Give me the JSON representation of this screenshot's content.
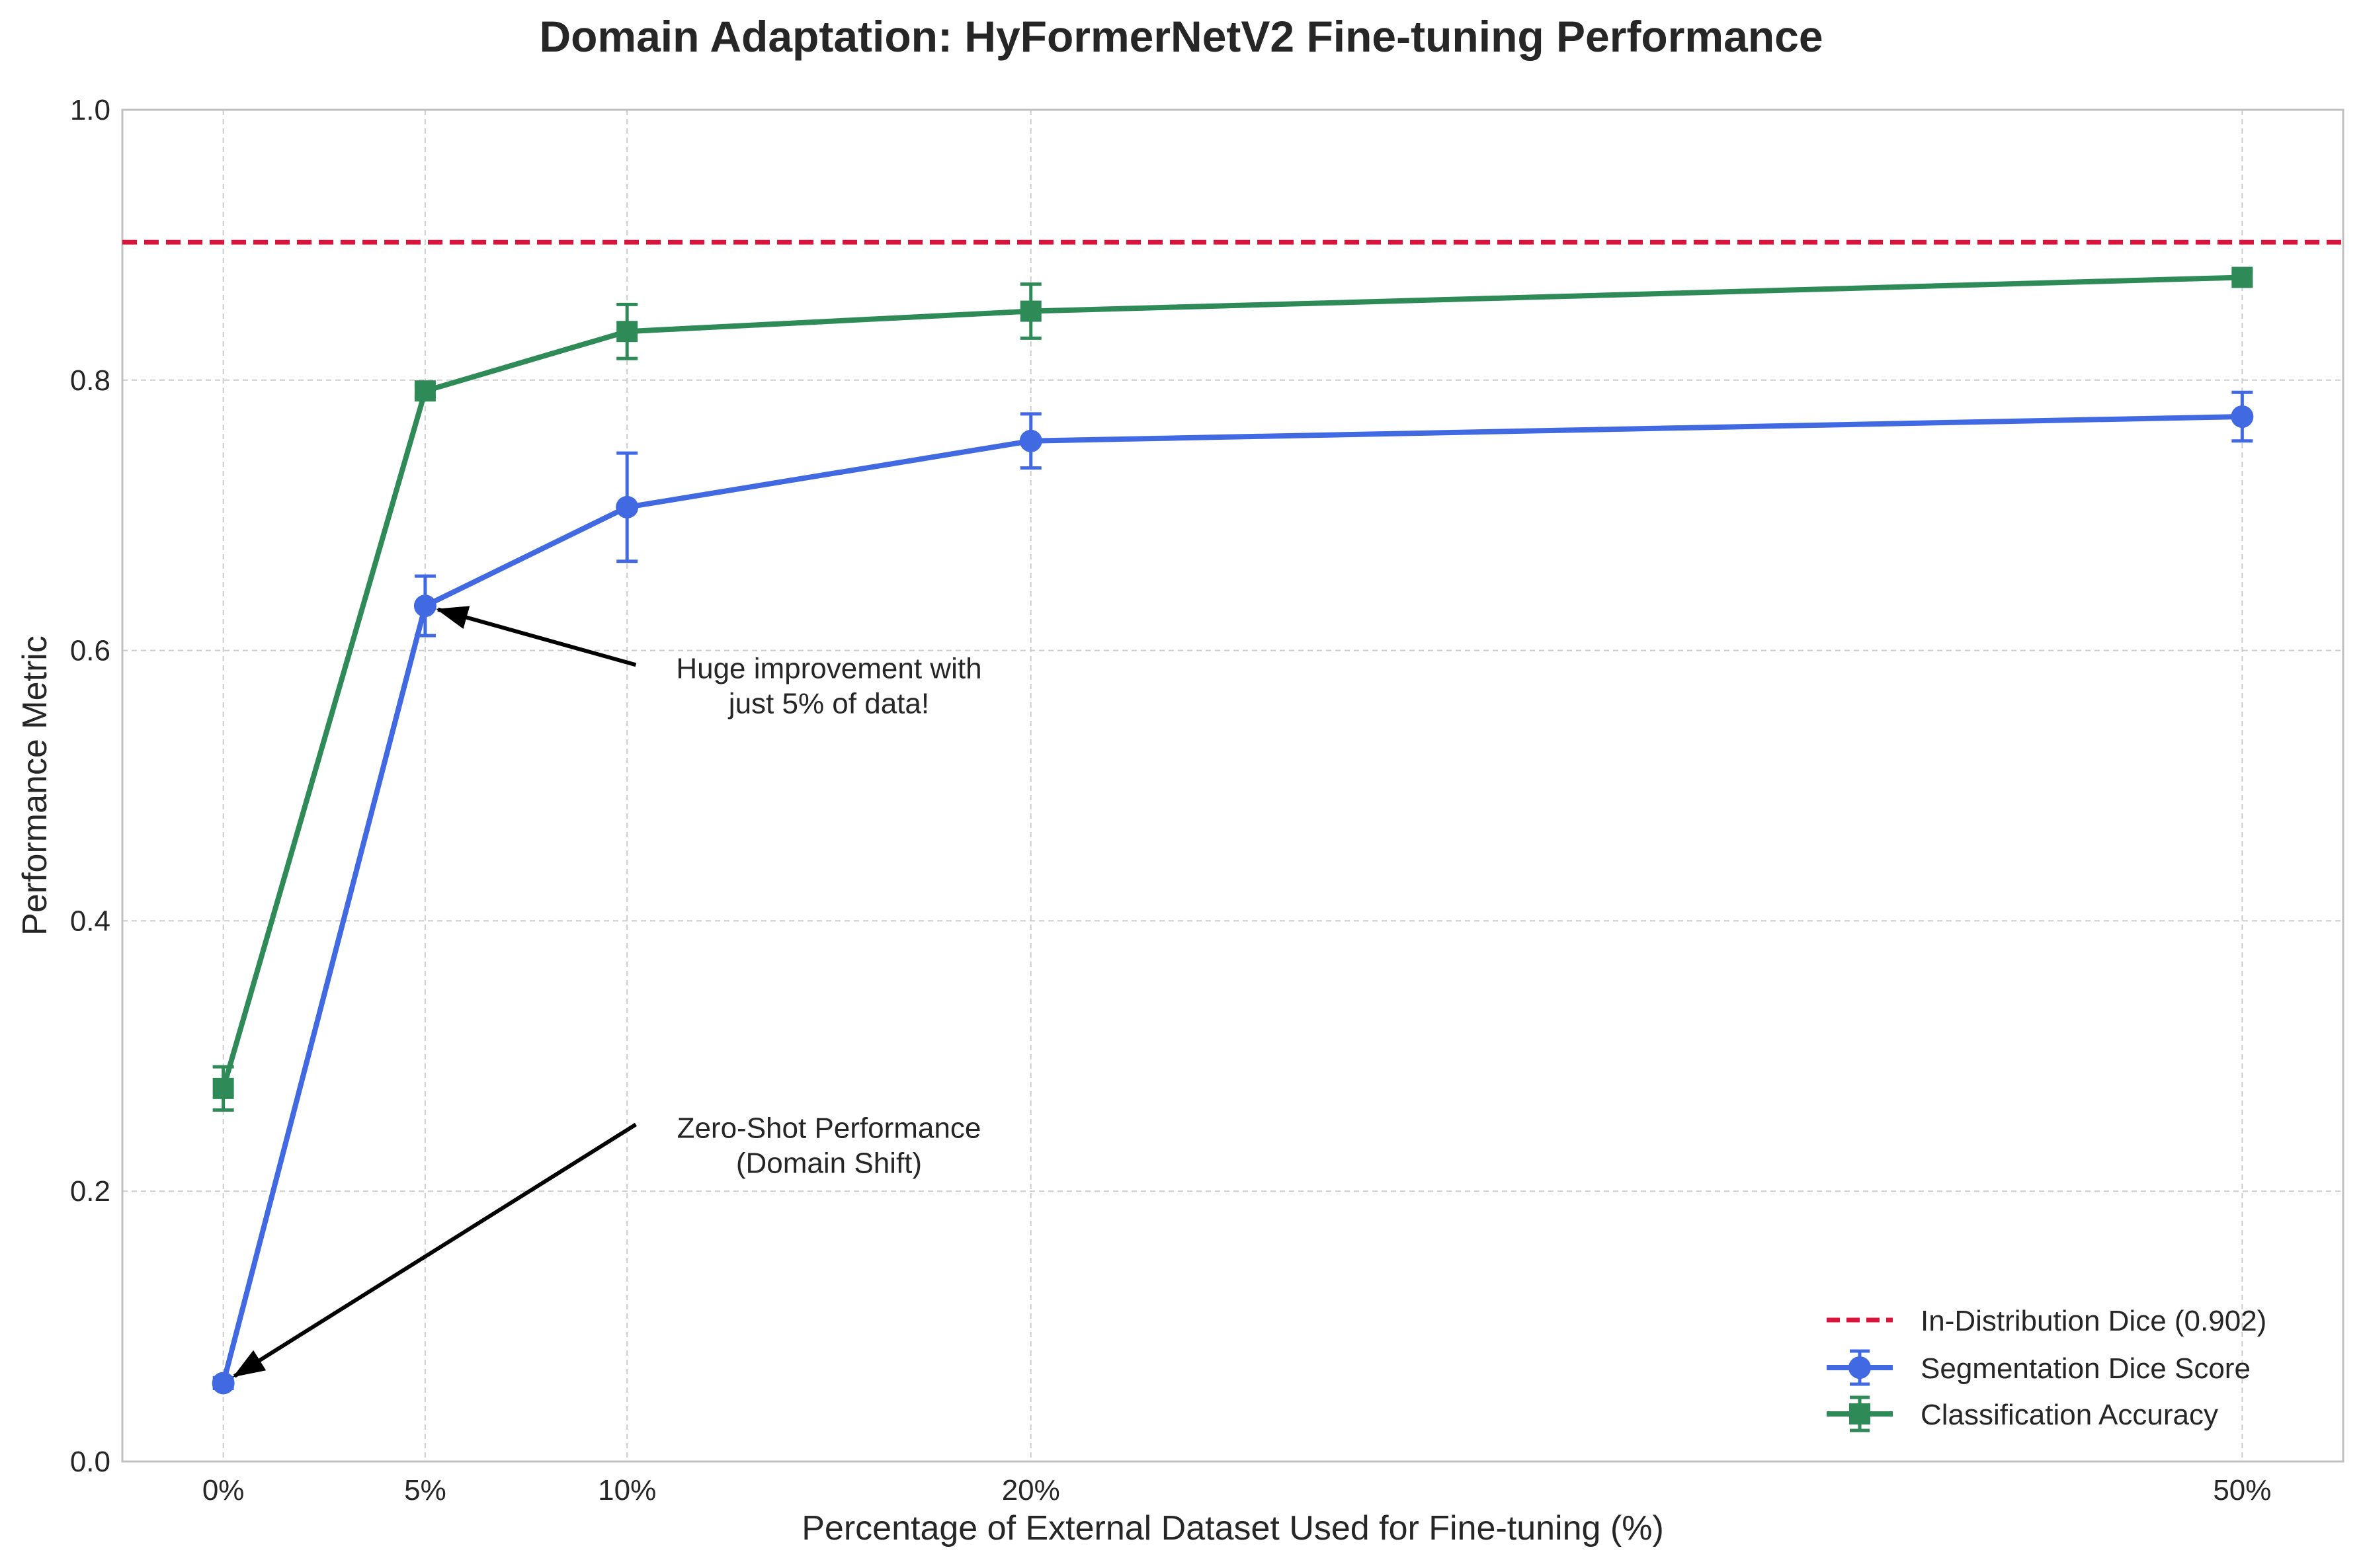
{
  "chart_data": {
    "type": "line",
    "title": "Domain Adaptation: HyFormerNetV2 Fine-tuning Performance",
    "xlabel": "Percentage of External Dataset Used for Fine-tuning (%)",
    "ylabel": "Performance Metric",
    "x": [
      0,
      5,
      10,
      20,
      50
    ],
    "x_tick_labels": [
      "0%",
      "5%",
      "10%",
      "20%",
      "50%"
    ],
    "xlim": [
      -2.5,
      52.5
    ],
    "ylim": [
      0.0,
      1.0
    ],
    "y_ticks": [
      0.0,
      0.2,
      0.4,
      0.6,
      0.8,
      1.0
    ],
    "y_tick_labels": [
      "0.0",
      "0.2",
      "0.4",
      "0.6",
      "0.8",
      "1.0"
    ],
    "grid": true,
    "series": [
      {
        "name": "Segmentation Dice Score",
        "color": "#4169e1",
        "marker": "circle",
        "values": [
          0.058,
          0.633,
          0.706,
          0.755,
          0.773
        ],
        "errors": [
          0.004,
          0.022,
          0.04,
          0.02,
          0.018
        ]
      },
      {
        "name": "Classification Accuracy",
        "color": "#2e8b57",
        "marker": "square",
        "values": [
          0.276,
          0.792,
          0.836,
          0.851,
          0.876
        ],
        "errors": [
          0.016,
          0.004,
          0.02,
          0.02,
          0.004
        ]
      }
    ],
    "reference_line": {
      "name": "In-Distribution Dice (0.902)",
      "value": 0.902,
      "color": "#dc143c",
      "style": "dashed"
    },
    "annotations": [
      {
        "lines": [
          "Huge improvement with",
          "just 5% of data!"
        ],
        "text_at": [
          15,
          0.56
        ],
        "arrow_to": [
          5,
          0.633
        ]
      },
      {
        "lines": [
          "Zero-Shot Performance",
          "(Domain Shift)"
        ],
        "text_at": [
          15,
          0.22
        ],
        "arrow_to": [
          0,
          0.058
        ]
      }
    ],
    "legend_position": "lower-right"
  }
}
